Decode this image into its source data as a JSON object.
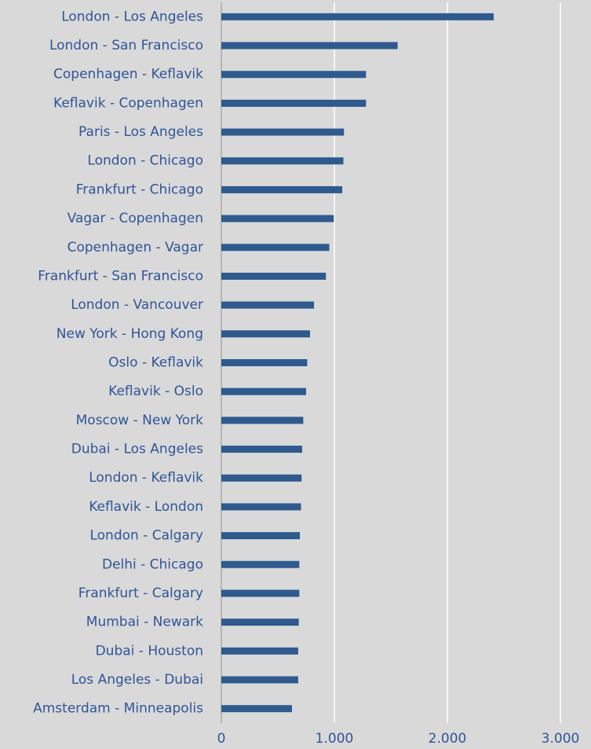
{
  "chart_data": {
    "type": "bar",
    "orientation": "horizontal",
    "categories": [
      "London - Los Angeles",
      "London - San Francisco",
      "Copenhagen - Keflavik",
      "Keflavik - Copenhagen",
      "Paris - Los Angeles",
      "London - Chicago",
      "Frankfurt - Chicago",
      "Vagar - Copenhagen",
      "Copenhagen - Vagar",
      "Frankfurt - San Francisco",
      "London - Vancouver",
      "New York - Hong Kong",
      "Oslo - Keflavik",
      "Keflavik - Oslo",
      "Moscow - New York",
      "Dubai - Los Angeles",
      "London - Keflavik",
      "Keflavik - London",
      "London - Calgary",
      "Delhi - Chicago",
      "Frankfurt - Calgary",
      "Mumbai - Newark",
      "Dubai - Houston",
      "Los Angeles - Dubai",
      "Amsterdam - Minneapolis"
    ],
    "values": [
      2410,
      1560,
      1280,
      1280,
      1085,
      1080,
      1070,
      995,
      955,
      925,
      820,
      785,
      760,
      750,
      725,
      715,
      710,
      705,
      695,
      690,
      690,
      685,
      680,
      680,
      625
    ],
    "color": "#2e5a8e",
    "xlim": [
      0,
      3000
    ],
    "xticks": [
      0,
      {
        "value": 1000,
        "label": "1.000"
      },
      {
        "value": 2000,
        "label": "2.000"
      },
      {
        "value": 3000,
        "label": "3.000"
      }
    ],
    "grid": true
  }
}
